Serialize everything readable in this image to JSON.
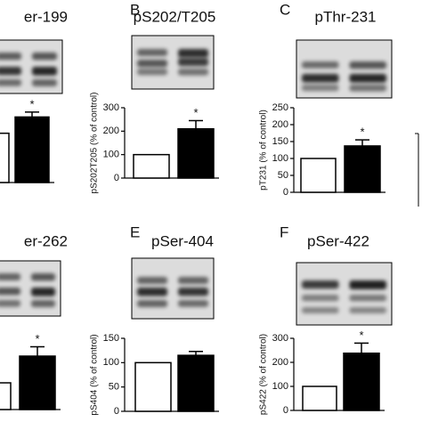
{
  "chart_data": [
    {
      "type": "bar",
      "title": "er-199",
      "categories": [
        null,
        null
      ],
      "values": [
        100,
        133
      ],
      "errors": [
        null,
        10
      ],
      "colors": [
        "#ffffff",
        "#000000"
      ],
      "ylim": [
        0,
        150
      ],
      "annotation": "*"
    },
    {
      "type": "bar",
      "label": "B",
      "title": "pS202/T205",
      "y_label": "pS202T205 (% of control)",
      "categories": [
        null,
        null
      ],
      "values": [
        100,
        210
      ],
      "errors": [
        null,
        35
      ],
      "colors": [
        "#ffffff",
        "#000000"
      ],
      "ylim": [
        0,
        300
      ],
      "yticks": [
        0,
        100,
        200,
        300
      ],
      "annotation": "*"
    },
    {
      "type": "bar",
      "label": "C",
      "title": "pThr-231",
      "y_label": "pT231 (% of control)",
      "categories": [
        null,
        null
      ],
      "values": [
        100,
        137
      ],
      "errors": [
        null,
        18
      ],
      "colors": [
        "#ffffff",
        "#000000"
      ],
      "ylim": [
        0,
        250
      ],
      "yticks": [
        0,
        50,
        100,
        150,
        200,
        250
      ],
      "annotation": "*"
    },
    {
      "type": "bar",
      "title": "er-262",
      "categories": [
        null,
        null
      ],
      "values": [
        100,
        200
      ],
      "errors": [
        null,
        35
      ],
      "colors": [
        "#ffffff",
        "#000000"
      ],
      "ylim": [
        0,
        250
      ],
      "annotation": "*"
    },
    {
      "type": "bar",
      "label": "E",
      "title": "pSer-404",
      "y_label": "pS404 (% of control)",
      "categories": [
        null,
        null
      ],
      "values": [
        100,
        115
      ],
      "errors": [
        null,
        8
      ],
      "colors": [
        "#ffffff",
        "#000000"
      ],
      "ylim": [
        0,
        150
      ],
      "yticks": [
        0,
        50,
        100,
        150
      ]
    },
    {
      "type": "bar",
      "label": "F",
      "title": "pSer-422",
      "y_label": "pS422 (% of control)",
      "categories": [
        null,
        null
      ],
      "values": [
        100,
        238
      ],
      "errors": [
        null,
        42
      ],
      "colors": [
        "#ffffff",
        "#000000"
      ],
      "ylim": [
        0,
        300
      ],
      "yticks": [
        0,
        100,
        200,
        300
      ],
      "annotation": "*"
    }
  ]
}
